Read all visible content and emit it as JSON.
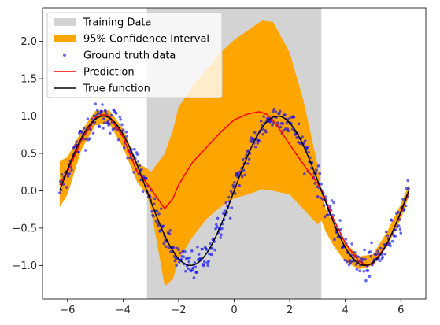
{
  "chart_data": {
    "type": "line",
    "title": "",
    "xlabel": "",
    "ylabel": "",
    "xlim": [
      -6.9,
      6.9
    ],
    "ylim": [
      -1.45,
      2.45
    ],
    "xticks": [
      -6,
      -4,
      -2,
      0,
      2,
      4,
      6
    ],
    "yticks": [
      -1.0,
      -0.5,
      0.0,
      0.5,
      1.0,
      1.5,
      2.0
    ],
    "xtick_labels": [
      "−6",
      "−4",
      "−2",
      "0",
      "2",
      "4",
      "6"
    ],
    "ytick_labels": [
      "−1.0",
      "−0.5",
      "0.0",
      "0.5",
      "1.0",
      "1.5",
      "2.0"
    ],
    "grid": false,
    "legend_position": "upper-left",
    "training_region": {
      "name": "Training Data",
      "x_range": [
        -3.14,
        3.14
      ],
      "color": "#d3d3d3"
    },
    "confidence_interval": {
      "name": "95% Confidence Interval",
      "color": "#ffa500",
      "x": [
        -6.28,
        -6.0,
        -5.5,
        -5.0,
        -4.5,
        -4.0,
        -3.5,
        -3.14,
        -3.0,
        -2.8,
        -2.5,
        -2.2,
        -2.0,
        -1.5,
        -1.0,
        -0.5,
        0.0,
        0.5,
        1.0,
        1.4,
        2.0,
        2.5,
        3.0,
        3.14,
        3.3,
        3.6,
        4.0,
        4.5,
        5.0,
        5.5,
        6.0,
        6.28
      ],
      "upper": [
        0.4,
        0.45,
        0.8,
        1.07,
        1.08,
        0.83,
        0.38,
        0.3,
        0.25,
        0.35,
        0.5,
        0.82,
        1.12,
        1.4,
        1.62,
        1.85,
        2.02,
        2.15,
        2.28,
        2.26,
        1.85,
        1.2,
        0.35,
        0.0,
        -0.25,
        -0.45,
        -0.7,
        -0.88,
        -0.85,
        -0.55,
        -0.18,
        0.08
      ],
      "lower": [
        -0.22,
        -0.05,
        0.55,
        0.88,
        0.9,
        0.58,
        0.12,
        -0.05,
        -0.25,
        -0.65,
        -1.28,
        -1.18,
        -0.92,
        -0.62,
        -0.38,
        -0.22,
        -0.1,
        -0.05,
        0.02,
        0.0,
        -0.05,
        -0.25,
        -0.45,
        -0.4,
        -0.55,
        -0.75,
        -0.95,
        -1.05,
        -1.0,
        -0.75,
        -0.38,
        -0.08
      ]
    },
    "series": [
      {
        "name": "Prediction",
        "color": "#ff0000",
        "x": [
          -6.28,
          -6.0,
          -5.5,
          -5.0,
          -4.7,
          -4.5,
          -4.0,
          -3.5,
          -3.14,
          -3.0,
          -2.8,
          -2.5,
          -2.2,
          -2.0,
          -1.5,
          -1.0,
          -0.5,
          0.0,
          0.5,
          0.9,
          1.2,
          1.5,
          2.0,
          2.5,
          3.0,
          3.14,
          3.5,
          4.0,
          4.5,
          4.8,
          5.0,
          5.5,
          6.0,
          6.28
        ],
        "y": [
          0.08,
          0.25,
          0.68,
          0.98,
          1.02,
          1.0,
          0.72,
          0.26,
          0.1,
          0.03,
          -0.08,
          -0.24,
          -0.1,
          0.08,
          0.38,
          0.58,
          0.78,
          0.95,
          1.03,
          1.06,
          1.02,
          0.9,
          0.62,
          0.35,
          0.1,
          0.02,
          -0.32,
          -0.7,
          -0.95,
          -1.0,
          -0.97,
          -0.72,
          -0.3,
          -0.02
        ]
      },
      {
        "name": "True function",
        "color": "#000000",
        "function": "sin(x)",
        "x_range": [
          -6.28,
          6.28
        ]
      }
    ],
    "scatter": {
      "name": "Ground truth data",
      "color": "#0000ff",
      "function": "sin(x) + noise",
      "noise_std": 0.1,
      "count": 500,
      "x_range": [
        -6.28,
        6.28
      ]
    }
  }
}
